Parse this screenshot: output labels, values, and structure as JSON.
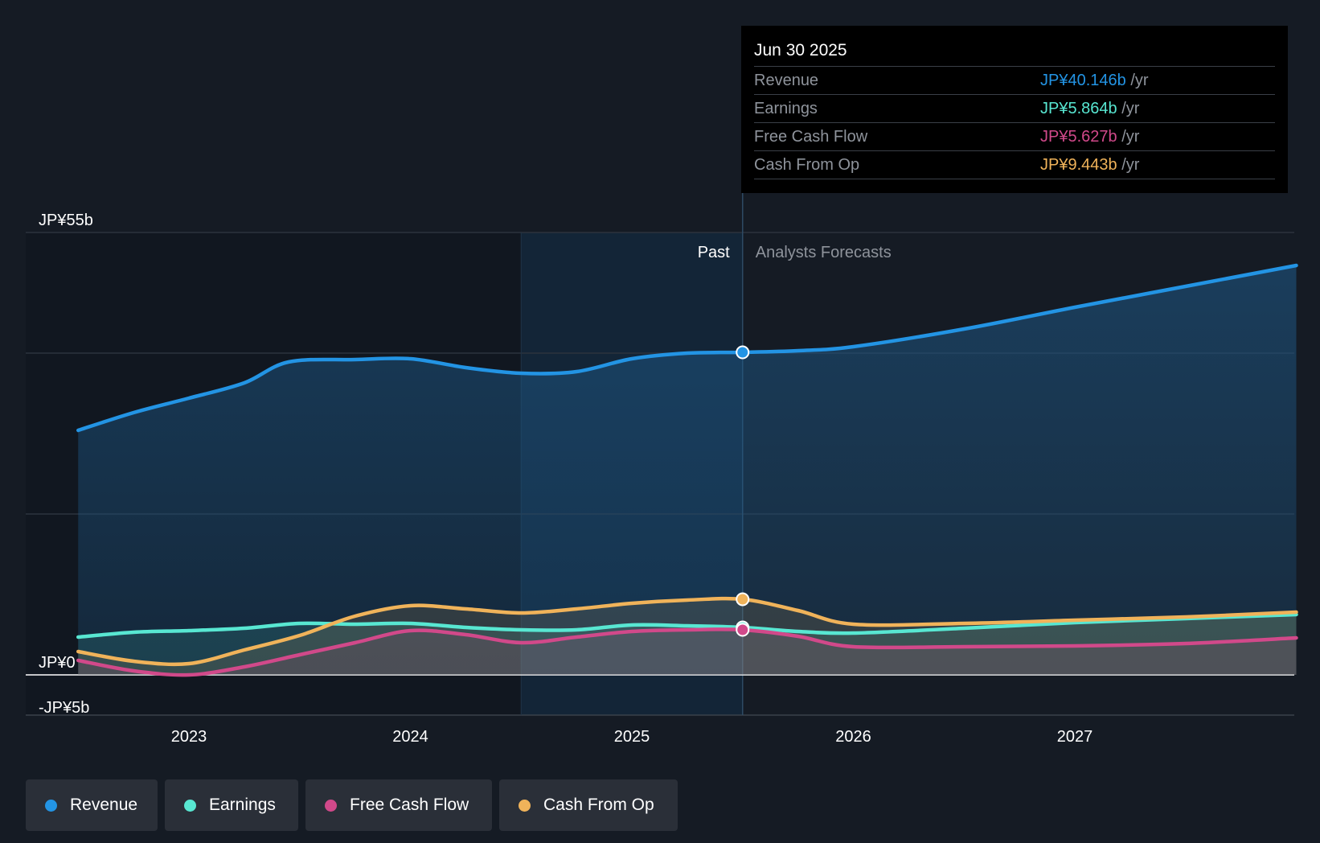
{
  "chart_data": {
    "type": "area",
    "y_axis": {
      "labels": [
        "JP¥55b",
        "JP¥0",
        "-JP¥5b"
      ],
      "range": [
        -5,
        55
      ],
      "unit": "JP¥ billions"
    },
    "x_axis": {
      "ticks": [
        "2023",
        "2024",
        "2025",
        "2026",
        "2027"
      ]
    },
    "segments": {
      "past": "Past",
      "forecast": "Analysts Forecasts",
      "divider_date": 2025.5,
      "shaded_from": 2024.5
    },
    "series": [
      {
        "name": "Revenue",
        "color": "#2394e4",
        "x": [
          2022.5,
          2022.75,
          2023.0,
          2023.25,
          2023.45,
          2023.75,
          2024.0,
          2024.25,
          2024.5,
          2024.75,
          2025.0,
          2025.25,
          2025.5,
          2025.75,
          2026.0,
          2026.5,
          2027.0,
          2027.5,
          2028.0
        ],
        "values": [
          30.4,
          32.6,
          34.4,
          36.3,
          38.9,
          39.2,
          39.3,
          38.2,
          37.5,
          37.7,
          39.3,
          40.0,
          40.1,
          40.3,
          40.8,
          43.0,
          45.7,
          48.3,
          50.9
        ]
      },
      {
        "name": "Earnings",
        "color": "#58e7d2",
        "x": [
          2022.5,
          2022.75,
          2023.0,
          2023.25,
          2023.5,
          2023.75,
          2024.0,
          2024.25,
          2024.5,
          2024.75,
          2025.0,
          2025.25,
          2025.5,
          2025.75,
          2026.0,
          2026.5,
          2027.0,
          2027.5,
          2028.0
        ],
        "values": [
          4.7,
          5.3,
          5.5,
          5.8,
          6.4,
          6.3,
          6.4,
          5.9,
          5.6,
          5.6,
          6.2,
          6.1,
          5.9,
          5.4,
          5.2,
          5.8,
          6.5,
          7.0,
          7.5
        ]
      },
      {
        "name": "Free Cash Flow",
        "color": "#d1498a",
        "x": [
          2022.5,
          2022.75,
          2023.0,
          2023.25,
          2023.5,
          2023.75,
          2024.0,
          2024.25,
          2024.5,
          2024.75,
          2025.0,
          2025.25,
          2025.5,
          2025.75,
          2026.0,
          2026.5,
          2027.0,
          2027.5,
          2028.0
        ],
        "values": [
          1.8,
          0.5,
          0.0,
          1.0,
          2.5,
          4.0,
          5.5,
          5.0,
          4.0,
          4.7,
          5.4,
          5.6,
          5.6,
          4.8,
          3.5,
          3.5,
          3.6,
          3.9,
          4.6
        ]
      },
      {
        "name": "Cash From Op",
        "color": "#f0b35a",
        "x": [
          2022.5,
          2022.75,
          2023.0,
          2023.25,
          2023.5,
          2023.75,
          2024.0,
          2024.25,
          2024.5,
          2024.75,
          2025.0,
          2025.25,
          2025.5,
          2025.75,
          2026.0,
          2026.5,
          2027.0,
          2027.5,
          2028.0
        ],
        "values": [
          2.9,
          1.7,
          1.4,
          3.1,
          4.9,
          7.3,
          8.6,
          8.2,
          7.7,
          8.2,
          8.9,
          9.3,
          9.4,
          8.0,
          6.3,
          6.4,
          6.8,
          7.2,
          7.8
        ]
      }
    ],
    "highlight_x": 2025.5
  },
  "tooltip": {
    "date": "Jun 30 2025",
    "unit": "/yr",
    "rows": [
      {
        "name": "Revenue",
        "value": "JP¥40.146b",
        "color": "#2394e4"
      },
      {
        "name": "Earnings",
        "value": "JP¥5.864b",
        "color": "#58e7d2"
      },
      {
        "name": "Free Cash Flow",
        "value": "JP¥5.627b",
        "color": "#d1498a"
      },
      {
        "name": "Cash From Op",
        "value": "JP¥9.443b",
        "color": "#f0b35a"
      }
    ]
  },
  "legend": [
    {
      "label": "Revenue",
      "color": "#2394e4"
    },
    {
      "label": "Earnings",
      "color": "#58e7d2"
    },
    {
      "label": "Free Cash Flow",
      "color": "#d1498a"
    },
    {
      "label": "Cash From Op",
      "color": "#f0b35a"
    }
  ]
}
